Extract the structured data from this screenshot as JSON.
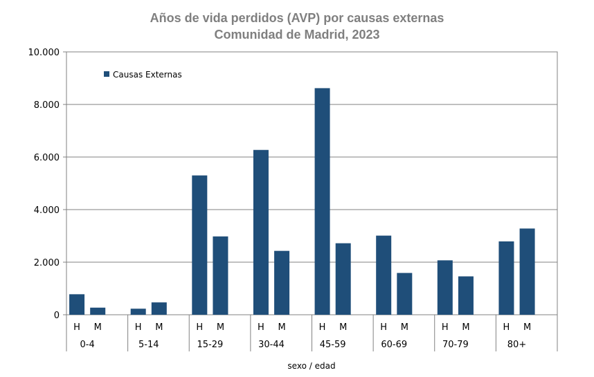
{
  "chart_data": {
    "type": "bar",
    "title": "Años de vida perdidos (AVP) por causas externas",
    "subtitle": "Comunidad de Madrid, 2023",
    "xlabel": "sexo / edad",
    "ylabel": "",
    "ylim": [
      0,
      10000
    ],
    "yticks": [
      "0",
      "2.000",
      "4.000",
      "6.000",
      "8.000",
      "10.000"
    ],
    "grid": true,
    "legend_position": "top-left",
    "series": [
      {
        "name": "Causas Externas",
        "color": "#1f4e79",
        "values": [
          780,
          270,
          230,
          470,
          5300,
          2980,
          6270,
          2430,
          8620,
          2720,
          3010,
          1590,
          2070,
          1460,
          2790,
          3280
        ]
      }
    ],
    "groups": [
      "0-4",
      "5-14",
      "15-29",
      "30-44",
      "45-59",
      "60-69",
      "70-79",
      "80+"
    ],
    "sexes": [
      "H",
      "M"
    ]
  }
}
